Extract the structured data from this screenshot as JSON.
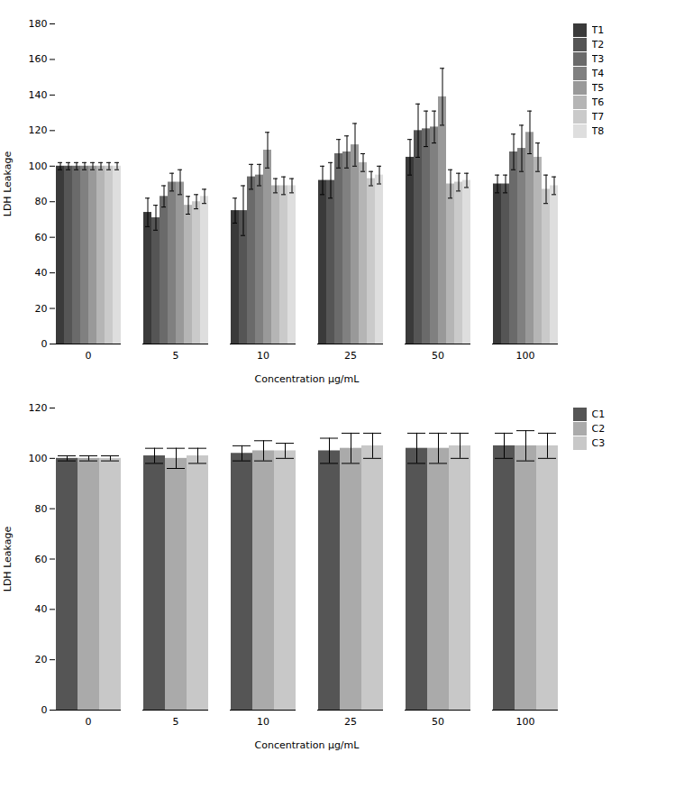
{
  "chart_data": [
    {
      "type": "bar",
      "xlabel": "Concentration μg/mL",
      "ylabel": "LDH Leakage",
      "categories": [
        "0",
        "5",
        "10",
        "25",
        "50",
        "100"
      ],
      "series": [
        {
          "name": "T1",
          "color": "#3a3a3a",
          "values": [
            100,
            74,
            75,
            92,
            105,
            90
          ],
          "errors": [
            2,
            8,
            7,
            8,
            10,
            5
          ]
        },
        {
          "name": "T2",
          "color": "#555555",
          "values": [
            100,
            71,
            75,
            92,
            120,
            90
          ],
          "errors": [
            2,
            7,
            14,
            10,
            15,
            5
          ]
        },
        {
          "name": "T3",
          "color": "#6a6a6a",
          "values": [
            100,
            83,
            94,
            107,
            121,
            108
          ],
          "errors": [
            2,
            6,
            7,
            8,
            10,
            10
          ]
        },
        {
          "name": "T4",
          "color": "#808080",
          "values": [
            100,
            91,
            95,
            108,
            122,
            110
          ],
          "errors": [
            2,
            5,
            6,
            9,
            9,
            13
          ]
        },
        {
          "name": "T5",
          "color": "#999999",
          "values": [
            100,
            91,
            109,
            112,
            139,
            119
          ],
          "errors": [
            2,
            7,
            10,
            12,
            16,
            12
          ]
        },
        {
          "name": "T6",
          "color": "#b5b5b5",
          "values": [
            100,
            78,
            89,
            102,
            90,
            105
          ],
          "errors": [
            2,
            5,
            4,
            5,
            8,
            8
          ]
        },
        {
          "name": "T7",
          "color": "#cacaca",
          "values": [
            100,
            80,
            89,
            93,
            91,
            87
          ],
          "errors": [
            2,
            4,
            5,
            4,
            5,
            8
          ]
        },
        {
          "name": "T8",
          "color": "#dedede",
          "values": [
            100,
            83,
            89,
            95,
            92,
            89
          ],
          "errors": [
            2,
            4,
            4,
            5,
            4,
            5
          ]
        }
      ],
      "ylim": [
        0,
        180
      ],
      "yticks": [
        0,
        20,
        40,
        60,
        80,
        100,
        120,
        140,
        160,
        180
      ],
      "legend": "right"
    },
    {
      "type": "bar",
      "xlabel": "Concentration μg/mL",
      "ylabel": "LDH Leakage",
      "categories": [
        "0",
        "5",
        "10",
        "25",
        "50",
        "100"
      ],
      "series": [
        {
          "name": "C1",
          "color": "#555555",
          "values": [
            100,
            101,
            102,
            103,
            104,
            105
          ],
          "errors": [
            1,
            3,
            3,
            5,
            6,
            5
          ]
        },
        {
          "name": "C2",
          "color": "#aaaaaa",
          "values": [
            100,
            100,
            103,
            104,
            104,
            105
          ],
          "errors": [
            1,
            4,
            4,
            6,
            6,
            6
          ]
        },
        {
          "name": "C3",
          "color": "#c8c8c8",
          "values": [
            100,
            101,
            103,
            105,
            105,
            105
          ],
          "errors": [
            1,
            3,
            3,
            5,
            5,
            5
          ]
        }
      ],
      "ylim": [
        0,
        120
      ],
      "yticks": [
        0,
        20,
        40,
        60,
        80,
        100,
        120
      ],
      "legend": "right"
    }
  ]
}
